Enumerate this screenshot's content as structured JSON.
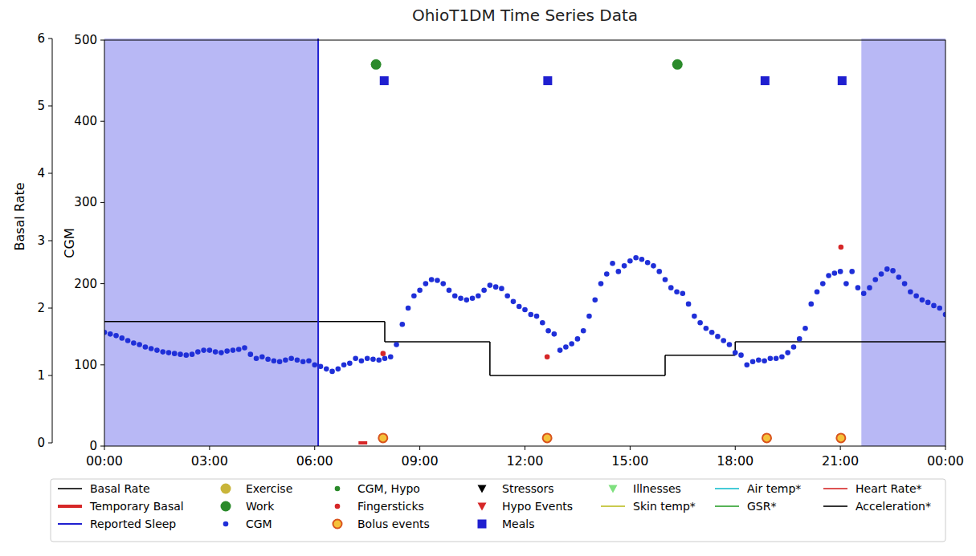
{
  "chart_data": {
    "type": "line",
    "title": "OhioT1DM Time Series Data",
    "y_label": "Basal Rate",
    "y2_label": "CGM",
    "xlim": [
      0,
      1440
    ],
    "xticks": [
      {
        "value": 0,
        "label": "00:00"
      },
      {
        "value": 180,
        "label": "03:00"
      },
      {
        "value": 360,
        "label": "06:00"
      },
      {
        "value": 540,
        "label": "09:00"
      },
      {
        "value": 720,
        "label": "12:00"
      },
      {
        "value": 900,
        "label": "15:00"
      },
      {
        "value": 1080,
        "label": "18:00"
      },
      {
        "value": 1260,
        "label": "21:00"
      },
      {
        "value": 1440,
        "label": "00:00"
      }
    ],
    "ylim": [
      0,
      6
    ],
    "yticks": [
      0,
      1,
      2,
      3,
      4,
      5,
      6
    ],
    "y2lim": [
      0,
      500
    ],
    "y2ticks": [
      0,
      100,
      200,
      300,
      400,
      500
    ],
    "grid": false,
    "legend": "bottom",
    "sleep": {
      "color": "#b8b8f5",
      "start": [
        0,
        1296
      ],
      "end": [
        366,
        1440
      ]
    },
    "series": [
      {
        "name": "Basal Rate",
        "color": "#000000",
        "line_style": "step",
        "x": [
          0,
          480,
          660,
          960,
          1080
        ],
        "values": [
          1.8,
          1.5,
          1.0,
          1.3,
          1.5
        ]
      },
      {
        "name": "Temporary Basal",
        "color": "#d62728",
        "line_style": "thick",
        "x": [
          435,
          450
        ],
        "values": [
          0,
          0
        ]
      },
      {
        "name": "Reported Sleep",
        "color": "#1f1fd0",
        "type": "vline",
        "line_style": "solid",
        "x": [
          366
        ]
      },
      {
        "name": "Exercise",
        "color": "#c9b53a",
        "marker": "circle",
        "axis": "y2",
        "x": [],
        "values": []
      },
      {
        "name": "Work",
        "color": "#2a8a2a",
        "marker": "circle",
        "axis": "y2",
        "x": [
          465,
          981
        ],
        "values": [
          470,
          470
        ]
      },
      {
        "name": "CGM",
        "color": "#1f2fd8",
        "marker": "dot",
        "axis": "y2",
        "x": [
          0,
          10,
          20,
          30,
          40,
          50,
          60,
          70,
          80,
          90,
          100,
          110,
          120,
          130,
          140,
          150,
          160,
          170,
          180,
          190,
          200,
          210,
          220,
          230,
          240,
          250,
          260,
          270,
          280,
          290,
          300,
          310,
          320,
          330,
          340,
          350,
          360,
          370,
          380,
          390,
          400,
          410,
          420,
          430,
          440,
          450,
          460,
          470,
          480,
          490,
          500,
          510,
          520,
          530,
          540,
          550,
          560,
          570,
          580,
          590,
          600,
          610,
          620,
          630,
          640,
          650,
          660,
          670,
          680,
          690,
          700,
          710,
          720,
          730,
          740,
          750,
          760,
          770,
          780,
          790,
          800,
          810,
          820,
          830,
          840,
          850,
          860,
          870,
          880,
          890,
          900,
          910,
          920,
          930,
          940,
          950,
          960,
          970,
          980,
          990,
          1000,
          1010,
          1020,
          1030,
          1040,
          1050,
          1060,
          1070,
          1080,
          1090,
          1100,
          1110,
          1120,
          1130,
          1140,
          1150,
          1160,
          1170,
          1180,
          1190,
          1200,
          1210,
          1220,
          1230,
          1240,
          1250,
          1260,
          1270,
          1280,
          1290,
          1300,
          1310,
          1320,
          1330,
          1340,
          1350,
          1360,
          1370,
          1380,
          1390,
          1400,
          1410,
          1420,
          1430,
          1440
        ],
        "values": [
          140,
          138,
          136,
          133,
          130,
          127,
          125,
          122,
          120,
          118,
          116,
          115,
          114,
          113,
          112,
          113,
          116,
          118,
          118,
          116,
          115,
          117,
          118,
          119,
          121,
          113,
          108,
          110,
          107,
          105,
          104,
          106,
          108,
          106,
          104,
          105,
          100,
          98,
          95,
          92,
          95,
          100,
          102,
          108,
          105,
          108,
          107,
          106,
          108,
          110,
          125,
          150,
          170,
          185,
          192,
          200,
          205,
          204,
          200,
          192,
          185,
          182,
          180,
          182,
          185,
          192,
          198,
          196,
          194,
          185,
          178,
          172,
          168,
          162,
          160,
          152,
          142,
          138,
          118,
          122,
          126,
          132,
          142,
          160,
          180,
          200,
          212,
          225,
          215,
          222,
          228,
          232,
          230,
          226,
          222,
          215,
          205,
          195,
          190,
          188,
          175,
          160,
          152,
          145,
          140,
          135,
          130,
          125,
          115,
          112,
          100,
          104,
          106,
          105,
          108,
          108,
          110,
          115,
          122,
          132,
          145,
          175,
          190,
          200,
          210,
          213,
          215,
          200,
          215,
          195,
          188,
          195,
          205,
          212,
          218,
          216,
          208,
          200,
          190,
          185,
          180,
          177,
          173,
          170,
          162
        ]
      },
      {
        "name": "CGM, Hypo",
        "color": "#2a8a2a",
        "marker": "dot",
        "axis": "y2",
        "x": [],
        "values": []
      },
      {
        "name": "Fingersticks",
        "color": "#d62728",
        "marker": "dot",
        "axis": "y2",
        "x": [
          477,
          758,
          1261
        ],
        "values": [
          114,
          110,
          245
        ]
      },
      {
        "name": "Bolus events",
        "color": "#f5c13a",
        "marker": "ring",
        "axis": "y2",
        "x": [
          477,
          758,
          1134,
          1261
        ],
        "values": [
          10,
          10,
          10,
          10
        ]
      },
      {
        "name": "Stressors",
        "color": "#000000",
        "marker": "triangle-down",
        "axis": "y2",
        "x": [],
        "values": []
      },
      {
        "name": "Hypo Events",
        "color": "#d62728",
        "marker": "triangle-down",
        "axis": "y2",
        "x": [],
        "values": []
      },
      {
        "name": "Meals",
        "color": "#1f1fd0",
        "marker": "square",
        "axis": "y2",
        "x": [
          479,
          759,
          1131,
          1263
        ],
        "values": [
          450,
          450,
          450,
          450
        ]
      },
      {
        "name": "Illnesses",
        "color": "#7ee07e",
        "marker": "triangle-down",
        "axis": "y2",
        "x": [],
        "values": []
      },
      {
        "name": "Skin temp*",
        "color": "#bcbd22",
        "line_style": "solid",
        "x": [],
        "values": []
      },
      {
        "name": "Air temp*",
        "color": "#17becf",
        "line_style": "solid",
        "x": [],
        "values": []
      },
      {
        "name": "GSR*",
        "color": "#2ca02c",
        "line_style": "solid",
        "x": [],
        "values": []
      },
      {
        "name": "Heart Rate*",
        "color": "#d62728",
        "line_style": "solid",
        "x": [],
        "values": []
      },
      {
        "name": "Acceleration*",
        "color": "#000000",
        "line_style": "solid",
        "x": [],
        "values": []
      }
    ]
  }
}
